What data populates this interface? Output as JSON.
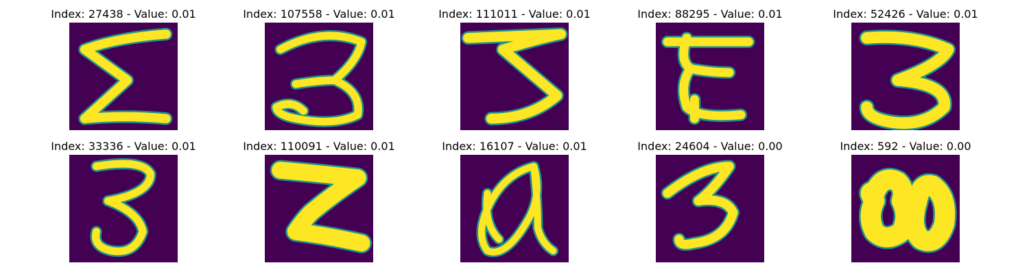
{
  "panels": [
    {
      "title": "Index: 27438 - Value: 0.01",
      "glyph": "Σ"
    },
    {
      "title": "Index: 107558 - Value: 0.01",
      "glyph": "3"
    },
    {
      "title": "Index: 111011 - Value: 0.01",
      "glyph": "3"
    },
    {
      "title": "Index: 88295 - Value: 0.01",
      "glyph": "E"
    },
    {
      "title": "Index: 52426 - Value: 0.01",
      "glyph": "3"
    },
    {
      "title": "Index: 33336 - Value: 0.01",
      "glyph": "3"
    },
    {
      "title": "Index: 110091 - Value: 0.01",
      "glyph": "Z"
    },
    {
      "title": "Index: 16107 - Value: 0.01",
      "glyph": "a"
    },
    {
      "title": "Index: 24604 - Value: 0.00",
      "glyph": "3"
    },
    {
      "title": "Index: 592 - Value: 0.00",
      "glyph": "80"
    }
  ],
  "colors": {
    "background": "#440154",
    "stroke": "#fde725",
    "stroke_edge": "#21918c"
  }
}
